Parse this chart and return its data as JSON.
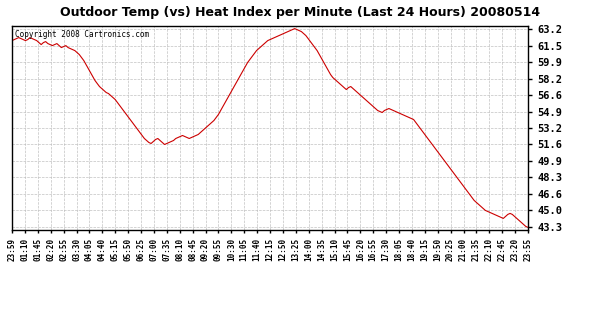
{
  "title": "Outdoor Temp (vs) Heat Index per Minute (Last 24 Hours) 20080514",
  "copyright": "Copyright 2008 Cartronics.com",
  "line_color": "#cc0000",
  "background_color": "#ffffff",
  "grid_color": "#bbbbbb",
  "yticks": [
    43.3,
    45.0,
    46.6,
    48.3,
    49.9,
    51.6,
    53.2,
    54.9,
    56.6,
    58.2,
    59.9,
    61.5,
    63.2
  ],
  "ylim_low": 43.0,
  "ylim_high": 63.5,
  "xtick_labels": [
    "23:59",
    "01:10",
    "01:45",
    "02:20",
    "02:55",
    "03:30",
    "04:05",
    "04:40",
    "05:15",
    "05:50",
    "06:25",
    "07:00",
    "07:35",
    "08:10",
    "08:45",
    "09:20",
    "09:55",
    "10:30",
    "11:05",
    "11:40",
    "12:15",
    "12:50",
    "13:25",
    "14:00",
    "14:35",
    "15:10",
    "15:45",
    "16:20",
    "16:55",
    "17:30",
    "18:05",
    "18:40",
    "19:15",
    "19:50",
    "20:25",
    "21:00",
    "21:35",
    "22:10",
    "22:45",
    "23:20",
    "23:55"
  ],
  "curve": [
    62.0,
    62.1,
    62.2,
    62.3,
    62.2,
    62.1,
    62.0,
    62.1,
    62.3,
    62.2,
    62.1,
    62.0,
    61.8,
    61.6,
    61.8,
    61.9,
    61.7,
    61.6,
    61.5,
    61.6,
    61.7,
    61.5,
    61.3,
    61.4,
    61.5,
    61.3,
    61.2,
    61.1,
    61.0,
    60.8,
    60.6,
    60.3,
    60.0,
    59.6,
    59.2,
    58.8,
    58.4,
    58.0,
    57.7,
    57.4,
    57.2,
    57.0,
    56.8,
    56.7,
    56.5,
    56.3,
    56.1,
    55.8,
    55.5,
    55.2,
    54.9,
    54.6,
    54.3,
    54.0,
    53.7,
    53.4,
    53.1,
    52.8,
    52.5,
    52.2,
    52.0,
    51.8,
    51.7,
    51.9,
    52.1,
    52.2,
    52.0,
    51.8,
    51.6,
    51.7,
    51.8,
    51.9,
    52.0,
    52.2,
    52.3,
    52.4,
    52.5,
    52.4,
    52.3,
    52.2,
    52.3,
    52.4,
    52.5,
    52.6,
    52.8,
    53.0,
    53.2,
    53.4,
    53.6,
    53.8,
    54.0,
    54.3,
    54.6,
    55.0,
    55.4,
    55.8,
    56.2,
    56.6,
    57.0,
    57.4,
    57.8,
    58.2,
    58.6,
    59.0,
    59.4,
    59.8,
    60.1,
    60.4,
    60.7,
    61.0,
    61.2,
    61.4,
    61.6,
    61.8,
    62.0,
    62.1,
    62.2,
    62.3,
    62.4,
    62.5,
    62.6,
    62.7,
    62.8,
    62.9,
    63.0,
    63.1,
    63.2,
    63.1,
    63.0,
    62.9,
    62.7,
    62.5,
    62.2,
    61.9,
    61.6,
    61.3,
    61.0,
    60.6,
    60.2,
    59.8,
    59.4,
    59.0,
    58.6,
    58.3,
    58.1,
    57.9,
    57.7,
    57.5,
    57.3,
    57.1,
    57.3,
    57.4,
    57.2,
    57.0,
    56.8,
    56.6,
    56.4,
    56.2,
    56.0,
    55.8,
    55.6,
    55.4,
    55.2,
    55.0,
    54.9,
    54.8,
    55.0,
    55.1,
    55.2,
    55.1,
    55.0,
    54.9,
    54.8,
    54.7,
    54.6,
    54.5,
    54.4,
    54.3,
    54.2,
    54.1,
    53.8,
    53.5,
    53.2,
    52.9,
    52.6,
    52.3,
    52.0,
    51.7,
    51.4,
    51.1,
    50.8,
    50.5,
    50.2,
    49.9,
    49.6,
    49.3,
    49.0,
    48.7,
    48.4,
    48.1,
    47.8,
    47.5,
    47.2,
    46.9,
    46.6,
    46.3,
    46.0,
    45.8,
    45.6,
    45.4,
    45.2,
    45.0,
    44.9,
    44.8,
    44.7,
    44.6,
    44.5,
    44.4,
    44.3,
    44.2,
    44.4,
    44.6,
    44.7,
    44.6,
    44.4,
    44.2,
    44.0,
    43.8,
    43.6,
    43.4,
    43.3
  ]
}
